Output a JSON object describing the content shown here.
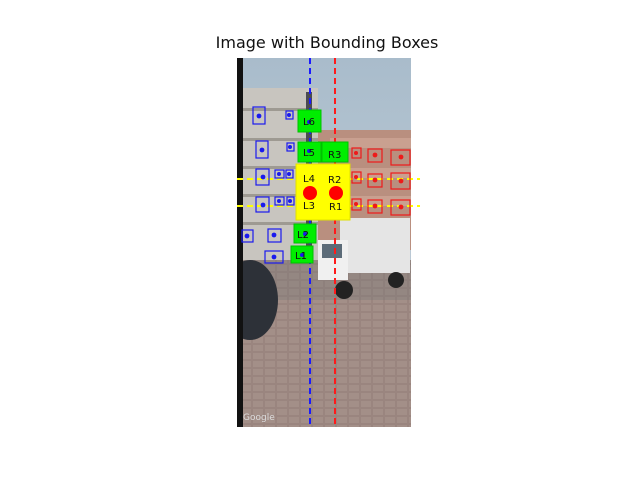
{
  "figure": {
    "title": "Image with Bounding Boxes",
    "watermark": "Google"
  },
  "colors": {
    "left_boxes": "#1a1aee",
    "right_boxes": "#ee1a1a",
    "selected_left": "#00ee00",
    "selected_center": "#ffff00",
    "left_guide": "#1a1aff",
    "right_guide": "#ff1a1a",
    "horizontal_guides": "#ffff00",
    "keypoints": "#ff0000"
  },
  "labels": {
    "L1": "L1",
    "L2": "L2",
    "L3": "L3",
    "L4": "L4",
    "L5": "L5",
    "L6": "L6",
    "R1": "R1",
    "R2": "R2",
    "R3": "R3"
  }
}
